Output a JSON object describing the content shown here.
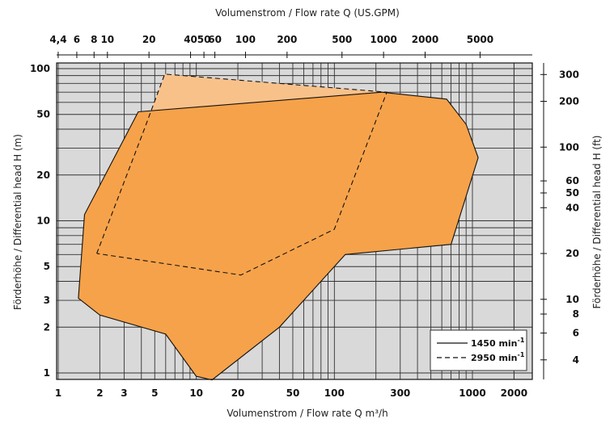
{
  "chart_data": {
    "type": "area",
    "x_bottom": {
      "label": "Volumenstrom / Flow rate Q m³/h",
      "scale": "log",
      "range": [
        1,
        2000
      ],
      "ticks": [
        1,
        2,
        3,
        5,
        10,
        20,
        50,
        100,
        300,
        1000,
        2000
      ],
      "tick_labels": [
        "1",
        "2",
        "3",
        "5",
        "10",
        "20",
        "50",
        "100",
        "300",
        "1000",
        "2000"
      ]
    },
    "x_top": {
      "label": "Volumenstrom / Flow rate Q (US.GPM)",
      "scale": "log",
      "ticks": [
        4.4,
        6,
        8,
        10,
        20,
        40,
        50,
        60,
        100,
        200,
        500,
        1000,
        2000,
        5000
      ],
      "tick_labels": [
        "4,4",
        "6",
        "8",
        "10",
        "20",
        "40",
        "50",
        "60",
        "100",
        "200",
        "500",
        "1000",
        "2000",
        "5000"
      ]
    },
    "y_left": {
      "label": "Förderhöhe / Differential head H (m)",
      "scale": "log",
      "range": [
        0.9,
        100
      ],
      "ticks": [
        1,
        2,
        3,
        5,
        10,
        20,
        50,
        100
      ],
      "tick_labels": [
        "1",
        "2",
        "3",
        "5",
        "10",
        "20",
        "50",
        "100"
      ]
    },
    "y_right": {
      "label": "Förderhöhe / Differential head H (ft)",
      "scale": "log",
      "ticks": [
        4,
        6,
        8,
        10,
        20,
        40,
        50,
        60,
        100,
        200,
        300
      ],
      "tick_labels": [
        "4",
        "6",
        "8",
        "10",
        "20",
        "40",
        "50",
        "60",
        "100",
        "200",
        "300"
      ]
    },
    "grid": true,
    "legend_position": "bottom-right",
    "series": [
      {
        "name": "1450 min-1",
        "line_style": "solid",
        "fill": "#F6A24A",
        "points": [
          [
            1.55,
            11
          ],
          [
            3.8,
            52
          ],
          [
            220,
            70
          ],
          [
            650,
            63
          ],
          [
            900,
            43
          ],
          [
            1100,
            26
          ],
          [
            700,
            7
          ],
          [
            120,
            6
          ],
          [
            40,
            2
          ],
          [
            13,
            0.9
          ],
          [
            10,
            0.95
          ],
          [
            6,
            1.8
          ],
          [
            2,
            2.4
          ],
          [
            1.4,
            3.1
          ]
        ]
      },
      {
        "name": "2950 min-1",
        "line_style": "dashed",
        "fill": "#F9C18A",
        "points": [
          [
            1.9,
            6.1
          ],
          [
            4.2,
            40
          ],
          [
            5.9,
            92
          ],
          [
            240,
            70
          ],
          [
            100,
            8.8
          ],
          [
            21,
            4.4
          ],
          [
            1.9,
            6.1
          ]
        ]
      }
    ],
    "legend": [
      {
        "label": "1450 min",
        "sup": "-1",
        "style": "solid"
      },
      {
        "label": "2950 min",
        "sup": "-1",
        "style": "dashed"
      }
    ],
    "colors": {
      "background": "#D9D9D9",
      "primary_fill": "#F6A24A",
      "secondary_fill": "#F9C18A"
    }
  }
}
